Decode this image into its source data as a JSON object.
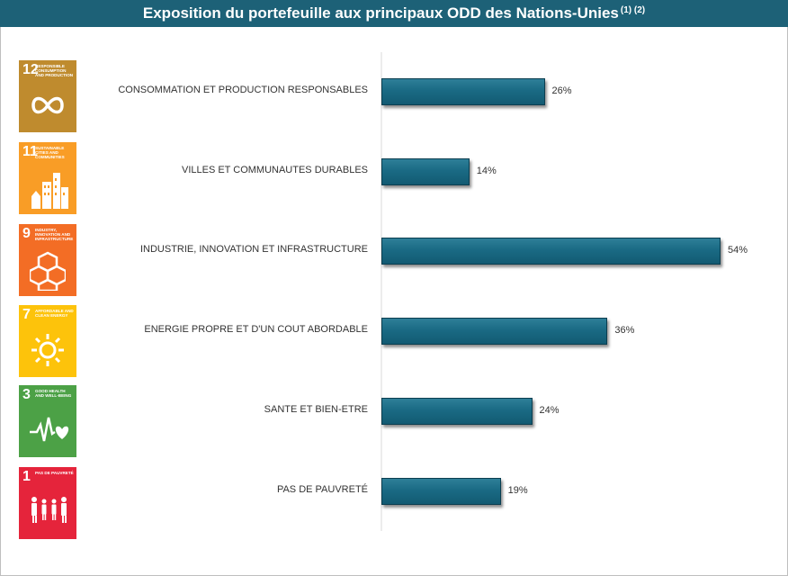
{
  "header": {
    "title": "Exposition du portefeuille aux principaux ODD des Nations-Unies",
    "footnote": "(1) (2)"
  },
  "sdg_tiles": [
    {
      "number": "12",
      "caption": "RESPONSIBLE CONSUMPTION AND PRODUCTION",
      "color": "#bf8b2e",
      "icon": "infinity-icon"
    },
    {
      "number": "11",
      "caption": "SUSTAINABLE CITIES AND COMMUNITIES",
      "color": "#f99d26",
      "icon": "city-icon"
    },
    {
      "number": "9",
      "caption": "INDUSTRY, INNOVATION AND INFRASTRUCTURE",
      "color": "#f36d25",
      "icon": "cubes-icon"
    },
    {
      "number": "7",
      "caption": "AFFORDABLE AND CLEAN ENERGY",
      "color": "#fdc30b",
      "icon": "sun-icon"
    },
    {
      "number": "3",
      "caption": "GOOD HEALTH AND WELL-BEING",
      "color": "#4ca146",
      "icon": "heartbeat-icon"
    },
    {
      "number": "1",
      "caption": "PAS DE PAUVRETÉ",
      "color": "#e5243b",
      "icon": "family-icon"
    }
  ],
  "chart_data": {
    "type": "bar",
    "orientation": "horizontal",
    "categories": [
      "CONSOMMATION ET PRODUCTION RESPONSABLES",
      "VILLES ET COMMUNAUTES DURABLES",
      "INDUSTRIE, INNOVATION ET INFRASTRUCTURE",
      "ENERGIE PROPRE ET D'UN COUT ABORDABLE",
      "SANTE ET BIEN-ETRE",
      "PAS DE PAUVRETÉ"
    ],
    "values": [
      26,
      14,
      54,
      36,
      24,
      19
    ],
    "value_labels": [
      "26%",
      "14%",
      "54%",
      "36%",
      "24%",
      "19%"
    ],
    "xlim": [
      0,
      54
    ],
    "bar_color": "#1a6a84",
    "grid": false
  }
}
